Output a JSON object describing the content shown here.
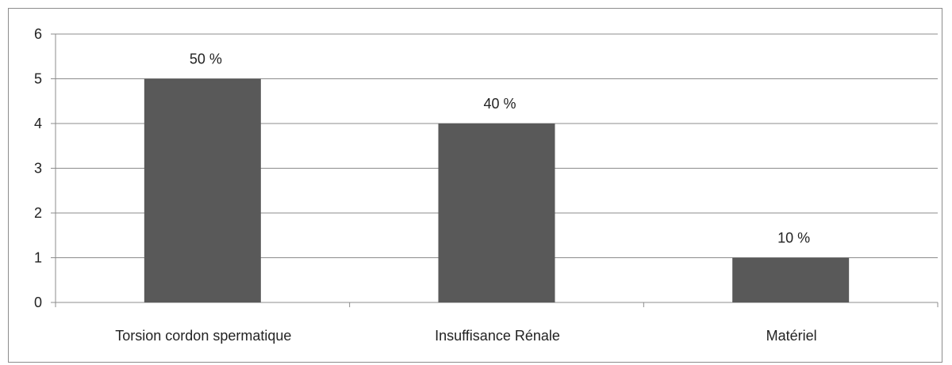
{
  "chart_data": {
    "type": "bar",
    "categories": [
      "Torsion cordon spermatique",
      "Insuffisance Rénale",
      "Matériel"
    ],
    "values": [
      5,
      4,
      1
    ],
    "data_labels": [
      "50 %",
      "40 %",
      "10 %"
    ],
    "yticks": [
      "0",
      "1",
      "2",
      "3",
      "4",
      "5",
      "6"
    ],
    "ylim": [
      0,
      6
    ],
    "grid": true,
    "bar_color": "#595959",
    "grid_color": "#8c8c8c"
  }
}
